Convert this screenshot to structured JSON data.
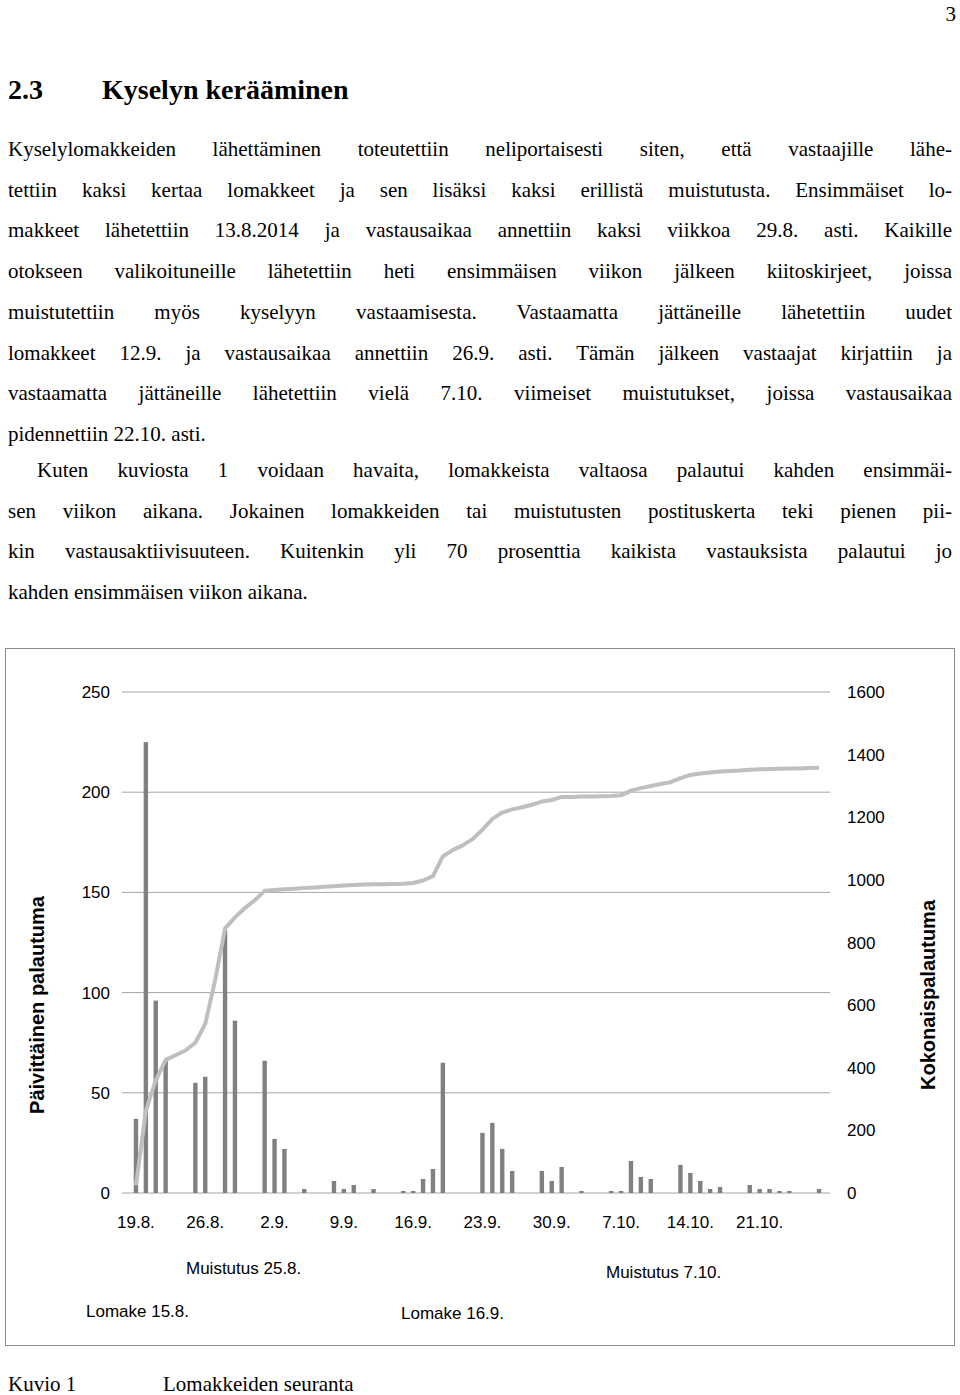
{
  "page_number": "3",
  "heading": {
    "number": "2.3",
    "title": "Kyselyn kerääminen"
  },
  "paragraphs": [
    [
      "Kyselylomakkeiden lähettäminen toteutettiin neliportaisesti siten, että vastaajille lähe-",
      "tettiin kaksi kertaa lomakkeet ja sen lisäksi kaksi erillistä muistutusta. Ensimmäiset lo-",
      "makkeet lähetettiin 13.8.2014 ja vastausaikaa annettiin kaksi viikkoa 29.8. asti. Kaikille",
      "otokseen valikoituneille lähetettiin heti ensimmäisen viikon jälkeen kiitoskirjeet, joissa",
      "muistutettiin myös kyselyyn vastaamisesta. Vastaamatta jättäneille lähetettiin uudet",
      "lomakkeet 12.9. ja vastausaikaa annettiin 26.9. asti. Tämän jälkeen vastaajat kirjattiin ja",
      "vastaamatta jättäneille lähetettiin vielä 7.10. viimeiset muistutukset, joissa vastausaikaa",
      "pidennettiin 22.10. asti."
    ],
    [
      "Kuten kuviosta 1 voidaan havaita, lomakkeista valtaosa palautui kahden ensimmäi-",
      "sen viikon aikana. Jokainen lomakkeiden tai muistutusten postituskerta teki pienen pii-",
      "kin vastausaktiivisuuteen. Kuitenkin yli 70 prosenttia kaikista vastauksista palautui jo",
      "kahden ensimmäisen viikon aikana."
    ]
  ],
  "chart_data": {
    "type": "bar",
    "y_label": "Päivittäinen palautuma",
    "y2_label": "Kokonaispalautuma",
    "categories": [
      "19.8.",
      null,
      null,
      null,
      null,
      null,
      null,
      "26.8.",
      null,
      null,
      null,
      null,
      null,
      null,
      "2.9.",
      null,
      null,
      null,
      null,
      null,
      null,
      "9.9.",
      null,
      null,
      null,
      null,
      null,
      null,
      "16.9.",
      null,
      null,
      null,
      null,
      null,
      null,
      "23.9.",
      null,
      null,
      null,
      null,
      null,
      null,
      "30.9.",
      null,
      null,
      null,
      null,
      null,
      null,
      "7.10.",
      null,
      null,
      null,
      null,
      null,
      null,
      "14.10.",
      null,
      null,
      null,
      null,
      null,
      null,
      "21.10.",
      null,
      null,
      null,
      null,
      null,
      null
    ],
    "series": [
      {
        "type": "bar",
        "color": "#808080",
        "values": [
          37,
          225,
          96,
          66,
          0,
          0,
          55,
          58,
          0,
          131,
          86,
          0,
          0,
          66,
          27,
          22,
          0,
          2,
          0,
          0,
          6,
          2,
          4,
          0,
          2,
          0,
          0,
          1,
          1,
          7,
          12,
          65,
          0,
          0,
          0,
          30,
          35,
          22,
          11,
          0,
          0,
          11,
          6,
          13,
          0,
          1,
          0,
          0,
          1,
          1,
          16,
          8,
          7,
          0,
          0,
          14,
          10,
          6,
          2,
          3,
          0,
          0,
          4,
          2,
          2,
          1,
          1,
          0,
          0,
          2
        ]
      },
      {
        "type": "line",
        "color": "#bfbfbf",
        "axis": "y2",
        "values": [
          25,
          262,
          360,
          425,
          440,
          455,
          480,
          540,
          680,
          845,
          880,
          910,
          935,
          965,
          968,
          970,
          972,
          974,
          976,
          978,
          980,
          982,
          984,
          985,
          986,
          986,
          987,
          988,
          990,
          998,
          1012,
          1075,
          1095,
          1110,
          1130,
          1160,
          1195,
          1215,
          1225,
          1232,
          1240,
          1250,
          1255,
          1265,
          1265,
          1266,
          1266,
          1267,
          1268,
          1270,
          1285,
          1293,
          1300,
          1306,
          1312,
          1325,
          1335,
          1340,
          1343,
          1346,
          1348,
          1349,
          1352,
          1353,
          1354,
          1355,
          1356,
          1356,
          1357,
          1358
        ]
      }
    ],
    "ylim": [
      0,
      250
    ],
    "yticks": [
      0,
      50,
      100,
      150,
      200,
      250
    ],
    "y2lim": [
      0,
      1600
    ],
    "y2ticks": [
      0,
      200,
      400,
      600,
      800,
      1000,
      1200,
      1400,
      1600
    ],
    "grid": true,
    "annotations": [
      {
        "text": "Muistutus 25.8."
      },
      {
        "text": "Muistutus 7.10."
      },
      {
        "text": "Lomake 15.8."
      },
      {
        "text": "Lomake 16.9."
      }
    ]
  },
  "caption": {
    "label": "Kuvio 1",
    "text": "Lomakkeiden seuranta"
  }
}
